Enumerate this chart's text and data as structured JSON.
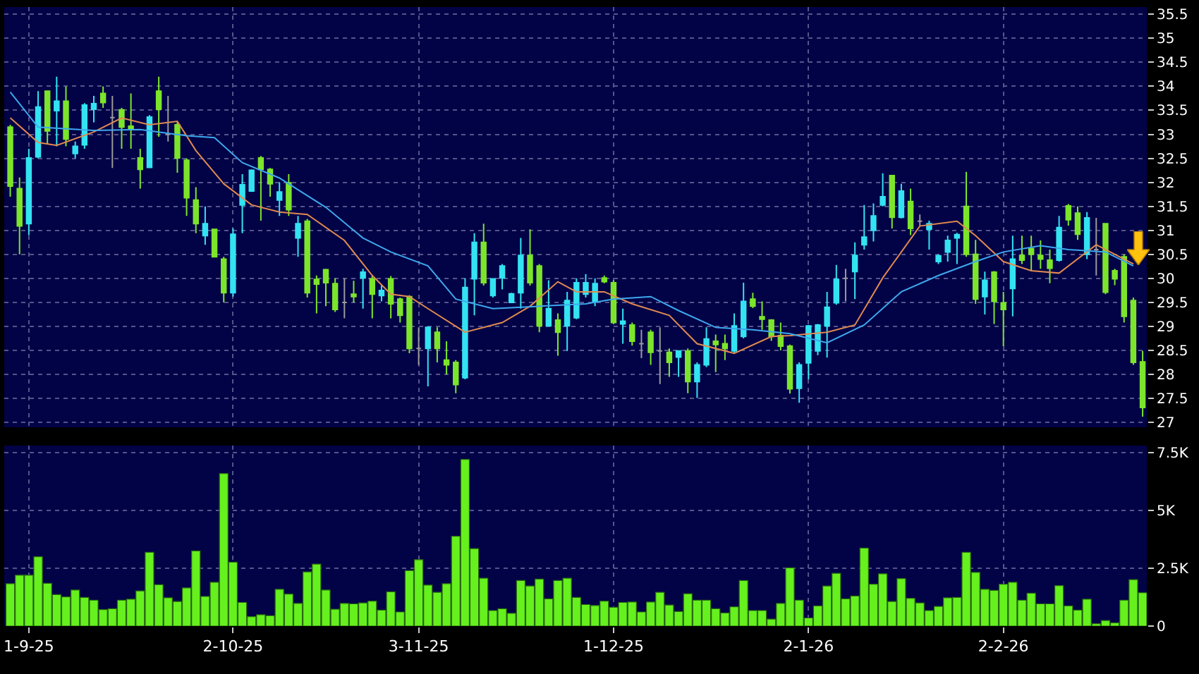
{
  "chart_data": [
    {
      "type": "candlestick",
      "grid": true,
      "tick_labels": "y",
      "ylim": [
        26.9,
        35.65
      ],
      "yticks": [
        27,
        27.5,
        28,
        28.5,
        29,
        29.5,
        30,
        30.5,
        31,
        31.5,
        32,
        32.5,
        33,
        33.5,
        34,
        34.5,
        35,
        35.5
      ],
      "categories": [
        null,
        null,
        null,
        null,
        null,
        null,
        null,
        null,
        null,
        null,
        null,
        null,
        null,
        null,
        null,
        null,
        null,
        null,
        null,
        null,
        null,
        null,
        null,
        null,
        null,
        null,
        null,
        null,
        null,
        null,
        null,
        null,
        null,
        null,
        null,
        null,
        null,
        null,
        null,
        null,
        null,
        null,
        null,
        null,
        null,
        null,
        null,
        null,
        null,
        null,
        null,
        null,
        null,
        null,
        null,
        null,
        null,
        null,
        null,
        null,
        null,
        null,
        null,
        null,
        null,
        null,
        null,
        null,
        null,
        null,
        null,
        null,
        null,
        null,
        null,
        null,
        null,
        null,
        null,
        null,
        null,
        null,
        null,
        null,
        null,
        null,
        null,
        null,
        null,
        null,
        null,
        null,
        null,
        null,
        null,
        null,
        null,
        null,
        null,
        null,
        null,
        null,
        null,
        null,
        null,
        null,
        null,
        null,
        null,
        null,
        null,
        null,
        null,
        null,
        null,
        null,
        null,
        null,
        null,
        null,
        null,
        null,
        null
      ],
      "ohlc": [
        [
          33.15,
          33.2,
          31.7,
          31.92
        ],
        [
          31.87,
          32.1,
          30.5,
          31.09
        ],
        [
          31.14,
          32.7,
          30.9,
          32.51
        ],
        [
          32.53,
          33.9,
          32.5,
          33.57
        ],
        [
          33.9,
          33.9,
          32.8,
          33.07
        ],
        [
          33.49,
          34.2,
          32.75,
          33.69
        ],
        [
          33.69,
          34.0,
          32.75,
          32.9
        ],
        [
          32.6,
          32.85,
          32.5,
          32.75
        ],
        [
          32.78,
          33.65,
          32.7,
          33.61
        ],
        [
          33.52,
          33.8,
          33.25,
          33.64
        ],
        [
          33.85,
          34.0,
          33.55,
          33.66
        ],
        [
          33.35,
          33.8,
          32.3,
          33.35
        ],
        [
          33.51,
          33.55,
          32.7,
          33.15
        ],
        [
          33.17,
          33.85,
          32.7,
          33.12
        ],
        [
          32.51,
          32.7,
          31.87,
          32.27
        ],
        [
          32.31,
          33.4,
          32.3,
          33.36
        ],
        [
          33.9,
          34.2,
          32.95,
          33.52
        ],
        [
          33.0,
          33.8,
          32.85,
          33.0
        ],
        [
          33.2,
          33.25,
          32.2,
          32.51
        ],
        [
          32.46,
          32.5,
          31.3,
          31.68
        ],
        [
          31.63,
          31.9,
          30.94,
          31.14
        ],
        [
          30.89,
          31.5,
          30.7,
          31.14
        ],
        [
          31.02,
          31.02,
          30.45,
          30.45
        ],
        [
          30.4,
          30.45,
          29.5,
          29.7
        ],
        [
          29.7,
          31.04,
          29.62,
          30.92
        ],
        [
          31.53,
          32.17,
          30.94,
          31.95
        ],
        [
          31.82,
          32.27,
          31.8,
          32.25
        ],
        [
          32.51,
          32.55,
          31.2,
          32.27
        ],
        [
          32.27,
          32.3,
          31.7,
          31.97
        ],
        [
          31.63,
          32.0,
          31.3,
          31.8
        ],
        [
          31.99,
          32.17,
          31.3,
          31.43
        ],
        [
          30.84,
          31.3,
          30.45,
          31.14
        ],
        [
          31.19,
          31.24,
          29.6,
          29.7
        ],
        [
          29.98,
          30.06,
          29.27,
          29.88
        ],
        [
          30.18,
          30.2,
          29.42,
          29.91
        ],
        [
          29.89,
          30.0,
          29.3,
          29.35
        ],
        [
          29.5,
          30.0,
          29.17,
          29.5
        ],
        [
          29.67,
          29.95,
          29.5,
          29.62
        ],
        [
          30.01,
          30.2,
          29.37,
          30.13
        ],
        [
          29.99,
          30.06,
          29.17,
          29.67
        ],
        [
          29.64,
          29.86,
          29.52,
          29.75
        ],
        [
          29.99,
          30.05,
          29.17,
          29.47
        ],
        [
          29.57,
          29.6,
          29.08,
          29.23
        ],
        [
          29.62,
          29.65,
          28.44,
          28.54
        ],
        [
          28.54,
          28.98,
          28.2,
          28.54
        ],
        [
          28.54,
          29.0,
          27.75,
          28.98
        ],
        [
          28.88,
          28.98,
          28.25,
          28.54
        ],
        [
          28.3,
          28.69,
          28.0,
          28.2
        ],
        [
          28.25,
          28.3,
          27.61,
          27.79
        ],
        [
          27.93,
          30.0,
          27.9,
          29.81
        ],
        [
          29.99,
          30.94,
          29.23,
          30.75
        ],
        [
          30.75,
          31.14,
          29.85,
          29.91
        ],
        [
          29.64,
          30.0,
          29.6,
          29.99
        ],
        [
          30.01,
          30.3,
          29.77,
          30.26
        ],
        [
          29.5,
          29.7,
          29.5,
          29.68
        ],
        [
          29.7,
          30.84,
          29.37,
          30.48
        ],
        [
          30.48,
          31.02,
          29.85,
          29.91
        ],
        [
          30.26,
          30.3,
          28.88,
          29.01
        ],
        [
          29.01,
          29.96,
          29.0,
          29.37
        ],
        [
          29.13,
          29.27,
          28.39,
          28.88
        ],
        [
          29.01,
          29.72,
          28.49,
          29.54
        ],
        [
          29.18,
          30.0,
          29.15,
          29.91
        ],
        [
          29.67,
          30.09,
          29.6,
          29.91
        ],
        [
          29.52,
          30.0,
          29.42,
          29.89
        ],
        [
          30.01,
          30.06,
          29.9,
          29.93
        ],
        [
          29.91,
          29.96,
          29.05,
          29.08
        ],
        [
          29.05,
          29.37,
          28.64,
          29.11
        ],
        [
          29.03,
          29.08,
          28.6,
          28.69
        ],
        [
          28.64,
          28.93,
          28.34,
          28.64
        ],
        [
          28.88,
          28.93,
          28.2,
          28.46
        ],
        [
          28.49,
          28.98,
          27.8,
          28.49
        ],
        [
          28.46,
          28.54,
          27.95,
          28.25
        ],
        [
          28.36,
          28.5,
          27.95,
          28.49
        ],
        [
          28.49,
          28.54,
          27.61,
          27.85
        ],
        [
          27.85,
          28.25,
          27.51,
          28.2
        ],
        [
          28.2,
          28.98,
          28.15,
          28.74
        ],
        [
          28.69,
          28.83,
          28.05,
          28.62
        ],
        [
          28.64,
          28.83,
          28.3,
          28.54
        ],
        [
          28.49,
          29.27,
          28.45,
          29.01
        ],
        [
          28.79,
          29.91,
          28.75,
          29.52
        ],
        [
          29.57,
          29.7,
          29.38,
          29.42
        ],
        [
          29.2,
          29.52,
          28.93,
          29.15
        ],
        [
          29.13,
          29.15,
          28.7,
          28.79
        ],
        [
          28.81,
          29.08,
          28.5,
          28.59
        ],
        [
          28.59,
          28.62,
          27.6,
          27.7
        ],
        [
          27.71,
          28.25,
          27.41,
          28.2
        ],
        [
          28.24,
          29.03,
          27.9,
          29.01
        ],
        [
          28.49,
          29.05,
          28.4,
          29.03
        ],
        [
          29.01,
          29.72,
          28.35,
          29.4
        ],
        [
          29.49,
          30.28,
          29.45,
          29.98
        ],
        [
          30.0,
          30.2,
          29.52,
          30.0
        ],
        [
          30.14,
          30.75,
          29.57,
          30.48
        ],
        [
          30.7,
          31.53,
          30.6,
          30.86
        ],
        [
          31.0,
          31.56,
          30.77,
          31.3
        ],
        [
          31.53,
          32.19,
          31.5,
          31.7
        ],
        [
          32.14,
          32.15,
          31.04,
          31.27
        ],
        [
          31.27,
          31.97,
          31.25,
          31.82
        ],
        [
          31.6,
          31.87,
          30.9,
          31.04
        ],
        [
          31.19,
          31.33,
          31.1,
          31.19
        ],
        [
          31.02,
          31.2,
          30.6,
          31.14
        ],
        [
          30.35,
          30.5,
          30.3,
          30.47
        ],
        [
          30.55,
          30.89,
          30.35,
          30.79
        ],
        [
          30.84,
          30.95,
          30.3,
          30.91
        ],
        [
          31.5,
          32.22,
          30.45,
          30.5
        ],
        [
          30.5,
          30.8,
          29.47,
          29.57
        ],
        [
          29.62,
          30.14,
          29.25,
          29.96
        ],
        [
          30.13,
          30.15,
          29.05,
          29.52
        ],
        [
          29.49,
          29.72,
          28.59,
          29.35
        ],
        [
          29.79,
          30.89,
          29.21,
          30.4
        ],
        [
          30.48,
          30.89,
          30.3,
          30.38
        ],
        [
          30.62,
          30.89,
          30.15,
          30.5
        ],
        [
          30.48,
          30.79,
          30.2,
          30.4
        ],
        [
          30.38,
          30.6,
          29.9,
          30.21
        ],
        [
          30.38,
          31.3,
          30.35,
          31.06
        ],
        [
          31.51,
          31.55,
          31.1,
          31.22
        ],
        [
          31.36,
          31.5,
          30.8,
          30.92
        ],
        [
          30.5,
          31.38,
          30.4,
          31.26
        ],
        [
          30.6,
          31.26,
          30.06,
          30.6
        ],
        [
          31.14,
          31.15,
          29.67,
          29.71
        ],
        [
          30.16,
          30.2,
          29.86,
          29.99
        ],
        [
          30.45,
          30.5,
          29.08,
          29.21
        ],
        [
          29.54,
          29.6,
          28.2,
          28.25
        ],
        [
          28.26,
          28.49,
          27.12,
          27.31
        ]
      ],
      "colors": [
        "#7ce52b",
        "#7ce52b",
        "#33e3f2",
        "#33e3f2",
        "#7ce52b",
        "#33e3f2",
        "#7ce52b",
        "#33e3f2",
        "#33e3f2",
        "#33e3f2",
        "#7ce52b",
        "#9a9a9a",
        "#7ce52b",
        "#7ce52b",
        "#7ce52b",
        "#33e3f2",
        "#7ce52b",
        "#9a9a9a",
        "#7ce52b",
        "#7ce52b",
        "#7ce52b",
        "#33e3f2",
        "#7ce52b",
        "#7ce52b",
        "#33e3f2",
        "#33e3f2",
        "#33e3f2",
        "#7ce52b",
        "#7ce52b",
        "#33e3f2",
        "#7ce52b",
        "#33e3f2",
        "#7ce52b",
        "#7ce52b",
        "#7ce52b",
        "#7ce52b",
        "#9a9a9a",
        "#7ce52b",
        "#33e3f2",
        "#7ce52b",
        "#33e3f2",
        "#7ce52b",
        "#7ce52b",
        "#7ce52b",
        "#9a9a9a",
        "#33e3f2",
        "#7ce52b",
        "#7ce52b",
        "#7ce52b",
        "#33e3f2",
        "#33e3f2",
        "#7ce52b",
        "#33e3f2",
        "#33e3f2",
        "#33e3f2",
        "#33e3f2",
        "#7ce52b",
        "#7ce52b",
        "#33e3f2",
        "#7ce52b",
        "#33e3f2",
        "#33e3f2",
        "#33e3f2",
        "#33e3f2",
        "#7ce52b",
        "#7ce52b",
        "#33e3f2",
        "#7ce52b",
        "#9a9a9a",
        "#7ce52b",
        "#9a9a9a",
        "#7ce52b",
        "#33e3f2",
        "#7ce52b",
        "#33e3f2",
        "#33e3f2",
        "#7ce52b",
        "#7ce52b",
        "#33e3f2",
        "#33e3f2",
        "#7ce52b",
        "#7ce52b",
        "#7ce52b",
        "#7ce52b",
        "#7ce52b",
        "#33e3f2",
        "#33e3f2",
        "#33e3f2",
        "#33e3f2",
        "#33e3f2",
        "#9a9a9a",
        "#33e3f2",
        "#33e3f2",
        "#33e3f2",
        "#33e3f2",
        "#7ce52b",
        "#33e3f2",
        "#7ce52b",
        "#9a9a9a",
        "#33e3f2",
        "#33e3f2",
        "#33e3f2",
        "#33e3f2",
        "#7ce52b",
        "#7ce52b",
        "#33e3f2",
        "#7ce52b",
        "#7ce52b",
        "#33e3f2",
        "#7ce52b",
        "#7ce52b",
        "#7ce52b",
        "#7ce52b",
        "#33e3f2",
        "#7ce52b",
        "#7ce52b",
        "#33e3f2",
        "#9a9a9a",
        "#7ce52b",
        "#7ce52b",
        "#7ce52b",
        "#7ce52b",
        "#7ce52b"
      ],
      "series": [
        {
          "type": "line",
          "color": "#e08a4f",
          "values": [
            33.34,
            null,
            null,
            32.83,
            null,
            32.77,
            null,
            null,
            null,
            33.05,
            null,
            null,
            33.34,
            null,
            null,
            33.2,
            null,
            null,
            33.27,
            null,
            32.66,
            null,
            null,
            31.97,
            null,
            null,
            31.53,
            null,
            null,
            31.38,
            null,
            null,
            31.33,
            null,
            null,
            null,
            30.79,
            null,
            null,
            30.06,
            null,
            29.67,
            null,
            29.62,
            null,
            29.37,
            null,
            null,
            null,
            28.88,
            null,
            null,
            null,
            29.08,
            null,
            null,
            29.42,
            null,
            null,
            29.93,
            null,
            29.72,
            null,
            null,
            29.72,
            null,
            null,
            29.47,
            null,
            null,
            null,
            29.23,
            null,
            null,
            28.64,
            null,
            null,
            null,
            28.44,
            null,
            null,
            null,
            28.79,
            null,
            28.81,
            null,
            null,
            null,
            28.88,
            null,
            null,
            29.03,
            null,
            null,
            30.01,
            null,
            null,
            null,
            31.09,
            null,
            null,
            null,
            31.19,
            null,
            30.89,
            null,
            null,
            30.35,
            null,
            null,
            30.16,
            null,
            null,
            30.11,
            null,
            null,
            null,
            30.7,
            null,
            null,
            null,
            30.3,
            null
          ]
        },
        {
          "type": "line",
          "color": "#3ea8ec",
          "values": [
            33.88,
            null,
            null,
            33.15,
            null,
            null,
            null,
            null,
            null,
            33.08,
            null,
            null,
            null,
            null,
            33.1,
            null,
            null,
            null,
            null,
            32.97,
            null,
            null,
            32.93,
            null,
            null,
            32.41,
            null,
            null,
            null,
            32.09,
            null,
            null,
            null,
            null,
            31.48,
            null,
            null,
            null,
            30.84,
            null,
            null,
            30.55,
            null,
            null,
            null,
            30.26,
            null,
            null,
            29.57,
            null,
            null,
            null,
            29.37,
            null,
            null,
            null,
            null,
            29.42,
            null,
            null,
            null,
            null,
            29.47,
            null,
            null,
            29.57,
            null,
            null,
            null,
            29.62,
            null,
            null,
            29.33,
            null,
            null,
            null,
            28.98,
            null,
            null,
            null,
            28.93,
            null,
            null,
            null,
            28.85,
            null,
            null,
            null,
            28.66,
            null,
            null,
            null,
            29.03,
            null,
            null,
            null,
            29.72,
            null,
            null,
            null,
            30.06,
            null,
            null,
            null,
            30.35,
            null,
            null,
            30.55,
            null,
            null,
            null,
            30.68,
            null,
            null,
            30.6,
            null,
            null,
            null,
            30.55,
            null,
            null,
            30.26,
            null
          ]
        }
      ]
    },
    {
      "type": "bar",
      "grid": true,
      "color": "#66f01e",
      "ylim": [
        0,
        7.8
      ],
      "yticks": [
        0,
        {
          "value": 2.5,
          "label": "2.5K"
        },
        {
          "value": 5,
          "label": "5K"
        },
        {
          "value": 7.5,
          "label": "7.5K"
        }
      ],
      "categories": [
        null,
        null,
        "1-9-25",
        null,
        null,
        null,
        null,
        null,
        null,
        null,
        null,
        null,
        null,
        null,
        null,
        null,
        null,
        null,
        null,
        null,
        null,
        null,
        null,
        null,
        "2-10-25",
        null,
        null,
        null,
        null,
        null,
        null,
        null,
        null,
        null,
        null,
        null,
        null,
        null,
        null,
        null,
        null,
        null,
        null,
        null,
        "3-11-25",
        null,
        null,
        null,
        null,
        null,
        null,
        null,
        null,
        null,
        null,
        null,
        null,
        null,
        null,
        null,
        null,
        null,
        null,
        null,
        null,
        "1-12-25",
        null,
        null,
        null,
        null,
        null,
        null,
        null,
        null,
        null,
        null,
        null,
        null,
        null,
        null,
        null,
        null,
        null,
        null,
        null,
        null,
        "2-1-26",
        null,
        null,
        null,
        null,
        null,
        null,
        null,
        null,
        null,
        null,
        null,
        null,
        null,
        null,
        null,
        null,
        null,
        null,
        null,
        null,
        "2-2-26",
        null,
        null,
        null,
        null,
        null,
        null,
        null,
        null,
        null,
        null,
        null,
        null,
        null,
        null,
        null
      ],
      "values": [
        1.83,
        2.2,
        2.2,
        3.0,
        1.85,
        1.36,
        1.26,
        1.56,
        1.24,
        1.12,
        0.71,
        0.75,
        1.12,
        1.16,
        1.52,
        3.19,
        1.79,
        1.22,
        1.06,
        1.65,
        3.25,
        1.28,
        1.89,
        6.59,
        2.76,
        1.02,
        0.41,
        0.49,
        0.45,
        1.59,
        1.38,
        0.98,
        2.34,
        2.68,
        1.56,
        0.73,
        0.98,
        0.96,
        1.0,
        1.08,
        0.69,
        1.48,
        0.61,
        2.4,
        2.87,
        1.77,
        1.46,
        1.83,
        3.88,
        7.2,
        3.35,
        2.07,
        0.67,
        0.75,
        0.55,
        1.97,
        1.73,
        2.03,
        1.18,
        1.97,
        2.07,
        1.24,
        0.93,
        0.89,
        1.08,
        0.81,
        1.02,
        1.04,
        0.61,
        1.04,
        1.46,
        0.91,
        0.63,
        1.4,
        1.12,
        1.12,
        0.75,
        0.57,
        0.83,
        1.97,
        0.67,
        0.67,
        0.3,
        0.98,
        2.52,
        1.12,
        0.35,
        0.87,
        1.73,
        2.28,
        1.18,
        1.3,
        3.37,
        1.81,
        2.26,
        1.06,
        2.05,
        1.2,
        1.0,
        0.67,
        0.85,
        1.22,
        1.24,
        3.19,
        2.32,
        1.59,
        1.54,
        1.81,
        1.89,
        1.12,
        1.42,
        0.96,
        0.96,
        1.75,
        0.87,
        0.69,
        1.16,
        0.1,
        0.24,
        0.14,
        1.12,
        2.01,
        1.44
      ]
    }
  ]
}
